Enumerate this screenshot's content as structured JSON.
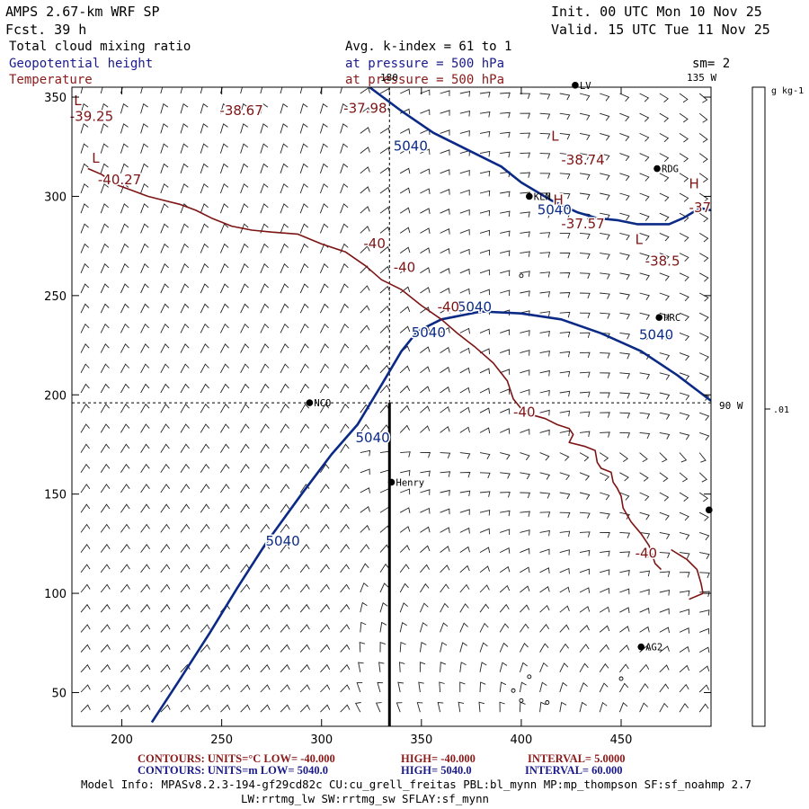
{
  "header": {
    "model": "AMPS 2.67-km WRF SP",
    "forecast": "Fcst.    39 h",
    "init": "Init. 00 UTC Mon 10 Nov 25",
    "valid": "Valid. 15 UTC Tue 11 Nov 25",
    "field_fill": "Total cloud mixing ratio",
    "field_height": "Geopotential height",
    "field_temp": "Temperature",
    "avg": "Avg. k-index =  61 to   1",
    "pressure1": "at pressure =  500 hPa",
    "pressure2": "at pressure =  500 hPa",
    "smoothing": "sm= 2"
  },
  "colors": {
    "height_blue": "#0a2a86",
    "temp_red": "#7d1414",
    "title_blue": "#1a1a8c",
    "title_red": "#8b1a1a"
  },
  "chart_data": {
    "type": "contour",
    "xlim": [
      175,
      495
    ],
    "ylim": [
      33,
      355
    ],
    "xticks": [
      200,
      250,
      300,
      350,
      400,
      450
    ],
    "yticks": [
      50,
      100,
      150,
      200,
      250,
      300,
      350
    ],
    "colorbar": {
      "unit": "g kg-1",
      "tick_label": ".01"
    },
    "meridian_labels": {
      "lon_180": "180",
      "lon_135w": "135 W",
      "lon_90w": "90 W"
    },
    "height_contours": [
      {
        "label": "5040",
        "points": [
          [
            215,
            35
          ],
          [
            228,
            55
          ],
          [
            244,
            80
          ],
          [
            258,
            103
          ],
          [
            272,
            125
          ],
          [
            290,
            150
          ],
          [
            305,
            170
          ],
          [
            318,
            185
          ],
          [
            330,
            205
          ],
          [
            340,
            222
          ],
          [
            348,
            232
          ],
          [
            360,
            238
          ],
          [
            380,
            242
          ],
          [
            400,
            241
          ],
          [
            420,
            238
          ],
          [
            440,
            231
          ],
          [
            460,
            222
          ],
          [
            478,
            210
          ],
          [
            495,
            197
          ]
        ]
      },
      {
        "label": "5040",
        "points": [
          [
            324,
            355
          ],
          [
            340,
            343
          ],
          [
            356,
            332
          ],
          [
            374,
            323
          ],
          [
            390,
            315
          ],
          [
            400,
            307
          ],
          [
            415,
            298
          ],
          [
            428,
            292
          ],
          [
            438,
            289
          ],
          [
            448,
            288
          ],
          [
            458,
            286
          ],
          [
            466,
            286
          ],
          [
            474,
            286
          ],
          [
            481,
            289
          ],
          [
            486,
            292
          ],
          [
            490,
            294
          ],
          [
            495,
            293
          ]
        ]
      }
    ],
    "height_labels": [
      {
        "text": "5040",
        "x": 336,
        "y": 323
      },
      {
        "text": "5040",
        "x": 408,
        "y": 291
      },
      {
        "text": "5040",
        "x": 368,
        "y": 242
      },
      {
        "text": "5040",
        "x": 459,
        "y": 228
      },
      {
        "text": "5040",
        "x": 345,
        "y": 229
      },
      {
        "text": "5040",
        "x": 317,
        "y": 176
      },
      {
        "text": "5040",
        "x": 272,
        "y": 124
      }
    ],
    "temp_contours": [
      {
        "label": "-40",
        "points": [
          [
            183,
            314
          ],
          [
            190,
            311
          ],
          [
            197,
            306
          ],
          [
            205,
            303
          ],
          [
            213,
            300
          ],
          [
            221,
            298
          ],
          [
            229,
            296
          ],
          [
            237,
            293
          ],
          [
            245,
            289
          ],
          [
            255,
            285
          ],
          [
            265,
            283
          ],
          [
            275,
            282
          ],
          [
            288,
            281
          ],
          [
            300,
            276
          ],
          [
            312,
            272
          ],
          [
            322,
            265
          ],
          [
            330,
            258
          ],
          [
            340,
            253
          ],
          [
            350,
            245
          ],
          [
            360,
            238
          ],
          [
            368,
            231
          ],
          [
            377,
            224
          ],
          [
            386,
            216
          ],
          [
            393,
            207
          ],
          [
            396,
            198
          ],
          [
            400,
            193
          ],
          [
            405,
            190
          ],
          [
            412,
            188
          ],
          [
            418,
            185
          ],
          [
            424,
            183
          ],
          [
            426,
            180
          ],
          [
            424,
            176
          ],
          [
            432,
            174
          ],
          [
            437,
            172
          ],
          [
            438,
            166
          ],
          [
            440,
            163
          ],
          [
            445,
            161
          ],
          [
            446,
            156
          ],
          [
            448,
            153
          ],
          [
            450,
            149
          ],
          [
            451,
            143
          ],
          [
            455,
            136
          ],
          [
            460,
            130
          ],
          [
            464,
            124
          ],
          [
            467,
            115
          ],
          [
            470,
            112
          ]
        ]
      },
      {
        "label": "-40",
        "points": [
          [
            484,
            97
          ],
          [
            491,
            100
          ],
          [
            490,
            105
          ],
          [
            488,
            112
          ],
          [
            483,
            117
          ],
          [
            475,
            122
          ]
        ]
      }
    ],
    "temp_labels": [
      {
        "text": "-38.67",
        "x": 249,
        "y": 341
      },
      {
        "text": "-37.98",
        "x": 311,
        "y": 342
      },
      {
        "text": "-39.25",
        "x": 174,
        "y": 338
      },
      {
        "text": "L",
        "x": 176,
        "y": 346
      },
      {
        "text": "-40.27",
        "x": 188,
        "y": 306
      },
      {
        "text": "L",
        "x": 185,
        "y": 317
      },
      {
        "text": "L",
        "x": 415,
        "y": 328
      },
      {
        "text": "-38.74",
        "x": 420,
        "y": 316
      },
      {
        "text": "H",
        "x": 416,
        "y": 296
      },
      {
        "text": "-37.57",
        "x": 420,
        "y": 284
      },
      {
        "text": "H",
        "x": 484,
        "y": 304
      },
      {
        "text": "-37",
        "x": 484,
        "y": 292
      },
      {
        "text": "L",
        "x": 457,
        "y": 276
      },
      {
        "text": "-38.5",
        "x": 462,
        "y": 265
      },
      {
        "text": "-40",
        "x": 321,
        "y": 274
      },
      {
        "text": "-40",
        "x": 336,
        "y": 262
      },
      {
        "text": "-40",
        "x": 358,
        "y": 242
      },
      {
        "text": "-40",
        "x": 396,
        "y": 189
      },
      {
        "text": "-40",
        "x": 457,
        "y": 118
      }
    ],
    "stations": [
      {
        "name": "NCO",
        "x": 294,
        "y": 196
      },
      {
        "name": "KLN",
        "x": 404,
        "y": 300
      },
      {
        "name": "RDG",
        "x": 468,
        "y": 314
      },
      {
        "name": "HRC",
        "x": 469,
        "y": 239
      },
      {
        "name": "Henry",
        "x": 335,
        "y": 156
      },
      {
        "name": "AG2",
        "x": 460,
        "y": 73
      },
      {
        "name": "LV",
        "x": 427,
        "y": 356
      },
      {
        "name": "",
        "x": 494,
        "y": 142
      }
    ],
    "small_circles": [
      [
        400,
        260
      ],
      [
        396,
        51
      ],
      [
        400,
        46
      ],
      [
        404,
        58
      ],
      [
        413,
        45
      ],
      [
        450,
        57
      ]
    ]
  },
  "footer": {
    "temp_contours": "CONTOURS:  UNITS=°C  LOW= -40.000",
    "temp_high": "HIGH= -40.000",
    "temp_interval": "INTERVAL=   5.0000",
    "height_contours": "CONTOURS:  UNITS=m  LOW=  5040.0",
    "height_high": "HIGH=  5040.0",
    "height_interval": "INTERVAL=   60.000",
    "model_info1": "Model Info: MPASv8.2.3-194-gf29cd82c CU:cu_grell_freitas PBL:bl_mynn MP:mp_thompson SF:sf_noahmp 2.7",
    "model_info2": "LW:rrtmg_lw SW:rrtmg_sw SFLAY:sf_mynn"
  }
}
